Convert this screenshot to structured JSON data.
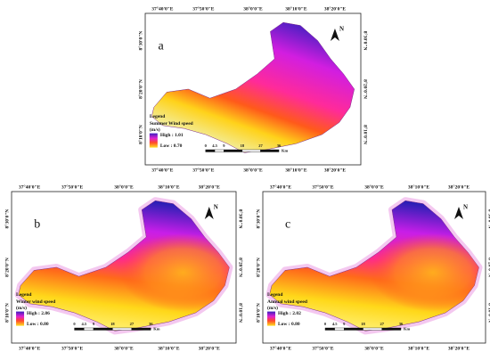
{
  "coords": {
    "lon": [
      "37°40'0\"E",
      "37°50'0\"E",
      "38°0'0\"E",
      "38°10'0\"E",
      "38°20'0\"E"
    ],
    "lat": [
      "8°30'0\"N",
      "8°20'0\"N",
      "8°10'0\"N"
    ]
  },
  "scale": {
    "ticks": [
      "0",
      "4.5",
      "9",
      "18",
      "27",
      "36"
    ],
    "unit": "Km"
  },
  "north": "N",
  "panels": [
    {
      "label": "a",
      "legend": {
        "title": "Legend",
        "name": "Summer Wind speed",
        "unit": "(m/s)",
        "high": "High : 1.01",
        "low": "Low : 0.70"
      }
    },
    {
      "label": "b",
      "legend": {
        "title": "Legend",
        "name": "Winter wind speed",
        "unit": "(m/s)",
        "high": "High : 2.86",
        "low": "Low : 0.80"
      }
    },
    {
      "label": "c",
      "legend": {
        "title": "Legend",
        "name": "Annual wind speed",
        "unit": "(m/s)",
        "high": "High : 2.02",
        "low": "Low : 0.80"
      }
    }
  ]
}
